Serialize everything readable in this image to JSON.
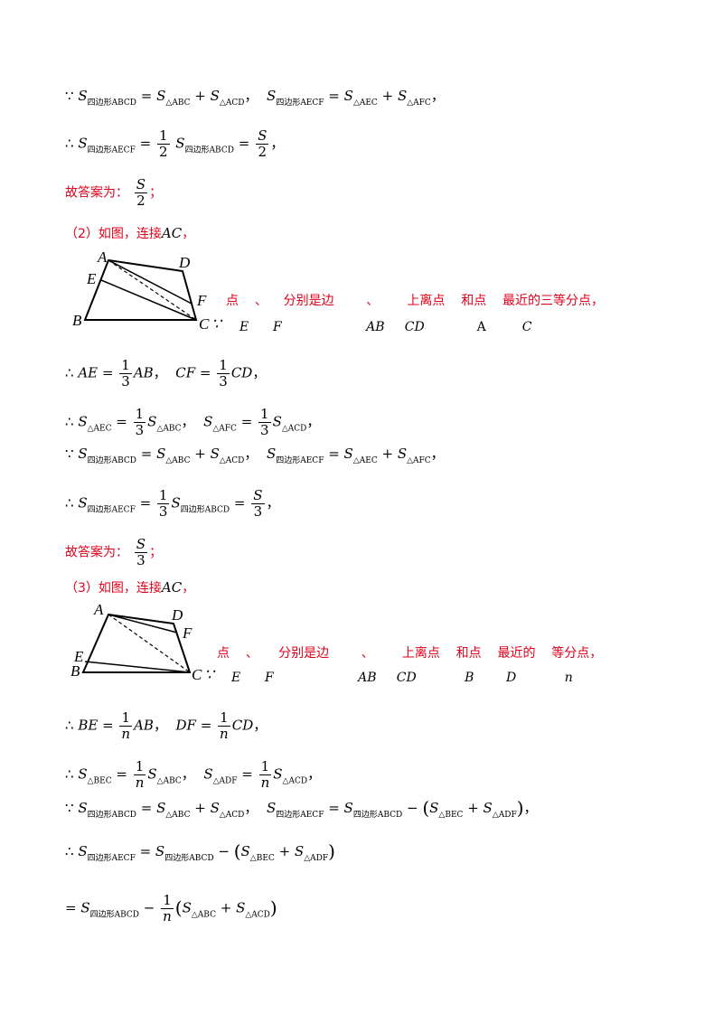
{
  "l1": {
    "a": "∵",
    "b": "S",
    "s1": "四边形ABCD",
    "e1": "=",
    "s2": "△ABC",
    "p1": "+",
    "s3": "△ACD",
    "c1": "，",
    "s4": "四边形AECF",
    "e2": "=",
    "s5": "△AEC",
    "p2": "+",
    "s6": "△AFC",
    "c2": "，"
  },
  "l2": {
    "a": "∴",
    "s1": "四边形AECF",
    "e1": "=",
    "n1": "1",
    "d1": "2",
    "s2": "四边形ABCD",
    "e2": "=",
    "n2": "S",
    "d2": "2",
    "c": "，"
  },
  "ans1": {
    "label": "故答案为：",
    "n": "S",
    "d": "2",
    "end": "；"
  },
  "p2": {
    "label": "（2）如图，连接",
    "ac": "AC",
    "end": "，"
  },
  "fig1": {
    "A": "A",
    "D": "D",
    "E": "E",
    "F": "F",
    "B": "B",
    "C": "C",
    "because": "∵"
  },
  "r1": {
    "t1": "点",
    "t2": "、",
    "t3": "分别是边",
    "t4": "、",
    "t5": "上离点",
    "t6": "和点",
    "t7": "最近的三等分点，"
  },
  "r1v": {
    "v1": "E",
    "v2": "F",
    "v3": "AB",
    "v4": "CD",
    "v5": "A",
    "v6": "C"
  },
  "l3": {
    "a": "∴",
    "ae": "AE",
    "e": "=",
    "n": "1",
    "d": "3",
    "ab": "AB",
    "c1": "，",
    "cf": "CF",
    "e2": "=",
    "n2": "1",
    "d2": "3",
    "cd": "CD",
    "c2": "，"
  },
  "l4": {
    "a": "∴",
    "s1": "△AEC",
    "n": "1",
    "d": "3",
    "s2": "△ABC",
    "c": "，",
    "s3": "△AFC",
    "n2": "1",
    "d2": "3",
    "s4": "△ACD",
    "c2": "，"
  },
  "l5": {
    "a": "∵",
    "s1": "四边形ABCD",
    "s2": "△ABC",
    "s3": "△ACD",
    "s4": "四边形AECF",
    "s5": "△AEC",
    "s6": "△AFC"
  },
  "l6": {
    "a": "∴",
    "s1": "四边形AECF",
    "n": "1",
    "d": "3",
    "s2": "四边形ABCD",
    "n2": "S",
    "d2": "3"
  },
  "ans2": {
    "label": "故答案为：",
    "n": "S",
    "d": "3",
    "end": "；"
  },
  "p3": {
    "label": "（3）如图，连接",
    "ac": "AC",
    "end": "，"
  },
  "fig2": {
    "A": "A",
    "D": "D",
    "F": "F",
    "E": "E",
    "B": "B",
    "C": "C",
    "because": "∵"
  },
  "r2": {
    "t1": "点",
    "t2": "、",
    "t3": "分别是边",
    "t4": "、",
    "t5": "上离点",
    "t6": "和点",
    "t7": "最近的",
    "t8": "等分点，"
  },
  "r2v": {
    "v1": "E",
    "v2": "F",
    "v3": "AB",
    "v4": "CD",
    "v5": "B",
    "v6": "D",
    "v7": "n"
  },
  "l7": {
    "a": "∴",
    "be": "BE",
    "n": "1",
    "d": "n",
    "ab": "AB",
    "df": "DF",
    "n2": "1",
    "d2": "n",
    "cd": "CD"
  },
  "l8": {
    "a": "∴",
    "s1": "△BEC",
    "n": "1",
    "d": "n",
    "s2": "△ABC",
    "s3": "△ADF",
    "n2": "1",
    "d2": "n",
    "s4": "△ACD"
  },
  "l9": {
    "a": "∵",
    "s1": "四边形ABCD",
    "s2": "△ABC",
    "s3": "△ACD",
    "s4": "四边形AECF",
    "s5": "四边形ABCD",
    "s6": "△BEC",
    "s7": "△ADF"
  },
  "l10": {
    "a": "∴",
    "s1": "四边形AECF",
    "s2": "四边形ABCD",
    "s3": "△BEC",
    "s4": "△ADF"
  },
  "l11": {
    "s1": "四边形ABCD",
    "n": "1",
    "d": "n",
    "s2": "△ABC",
    "s3": "△ACD"
  }
}
